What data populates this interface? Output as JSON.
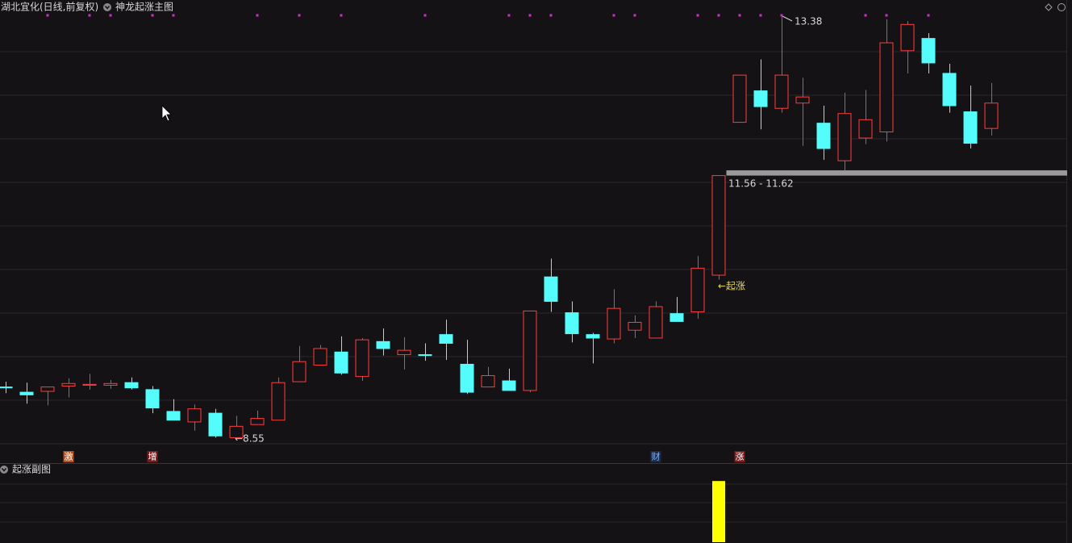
{
  "chart_data": [
    {
      "type": "candlestick",
      "title": "湖北宜化(日线,前复权)",
      "subtitle": "神龙起涨主图",
      "categories": [
        null,
        null,
        null,
        null,
        null,
        null,
        null,
        null,
        null,
        null,
        null,
        null,
        null,
        null,
        null,
        null,
        null,
        null,
        null,
        null,
        null,
        null,
        null,
        null,
        null,
        null,
        null,
        null,
        null,
        null,
        null,
        null,
        null,
        null,
        null,
        null,
        null,
        null,
        null,
        null,
        null,
        null,
        null,
        null,
        null,
        null,
        null,
        null
      ],
      "open": [
        9.14,
        9.08,
        9.09,
        9.15,
        9.16,
        9.16,
        9.19,
        9.11,
        8.86,
        8.74,
        8.84,
        8.56,
        8.71,
        8.76,
        9.2,
        9.39,
        9.54,
        9.26,
        9.66,
        9.51,
        9.51,
        9.74,
        9.4,
        9.14,
        9.21,
        9.1,
        10.4,
        9.99,
        9.74,
        9.69,
        9.79,
        9.7,
        9.98,
        10.0,
        10.42,
        12.17,
        12.53,
        12.33,
        12.39,
        12.16,
        11.73,
        11.99,
        12.06,
        12.99,
        13.13,
        12.73,
        12.29,
        12.1
      ],
      "high": [
        9.2,
        9.19,
        9.14,
        9.24,
        9.29,
        9.22,
        9.25,
        9.15,
        9.0,
        8.94,
        8.89,
        8.81,
        8.87,
        9.25,
        9.61,
        9.62,
        9.72,
        9.7,
        9.81,
        9.71,
        9.64,
        9.91,
        9.68,
        9.37,
        9.35,
        10.01,
        10.61,
        10.12,
        9.76,
        10.26,
        9.96,
        10.12,
        10.17,
        10.64,
        11.56,
        12.71,
        12.89,
        13.38,
        12.68,
        12.36,
        12.51,
        12.54,
        13.35,
        13.33,
        13.19,
        12.84,
        12.59,
        12.62
      ],
      "low": [
        9.07,
        8.95,
        8.93,
        9.02,
        9.11,
        9.12,
        9.11,
        8.84,
        8.76,
        8.64,
        8.56,
        8.55,
        8.71,
        8.76,
        9.2,
        9.39,
        9.28,
        9.21,
        9.5,
        9.34,
        9.44,
        9.45,
        9.06,
        9.14,
        9.1,
        9.08,
        10.0,
        9.65,
        9.41,
        9.64,
        9.7,
        9.7,
        9.89,
        9.92,
        10.37,
        12.17,
        12.09,
        12.28,
        11.9,
        11.74,
        11.62,
        11.92,
        11.95,
        12.73,
        12.73,
        12.28,
        11.87,
        12.02
      ],
      "close": [
        9.13,
        9.05,
        9.14,
        9.18,
        9.17,
        9.18,
        9.13,
        8.9,
        8.76,
        8.89,
        8.58,
        8.69,
        8.78,
        9.19,
        9.43,
        9.58,
        9.3,
        9.68,
        9.58,
        9.56,
        9.5,
        9.64,
        9.08,
        9.27,
        9.1,
        10.01,
        10.12,
        9.75,
        9.7,
        10.04,
        9.88,
        10.06,
        9.89,
        10.5,
        11.56,
        12.71,
        12.35,
        12.71,
        12.46,
        11.87,
        12.27,
        12.2,
        13.08,
        13.29,
        12.85,
        12.36,
        11.93,
        12.39
      ],
      "ylim": [
        8.49,
        13.57
      ],
      "up_color": "#ff3c3c",
      "down_color": "#54fcfc",
      "signal_color": "#d42ad4",
      "signals": [
        0,
        0,
        1,
        0,
        1,
        1,
        0,
        1,
        1,
        0,
        0,
        0,
        1,
        0,
        1,
        0,
        1,
        0,
        0,
        0,
        1,
        0,
        0,
        0,
        1,
        1,
        1,
        0,
        0,
        1,
        1,
        0,
        0,
        1,
        1,
        1,
        1,
        1,
        0,
        0,
        0,
        1,
        1,
        0,
        1,
        0,
        0,
        0
      ],
      "bottom_tags": [
        null,
        null,
        null,
        "激",
        null,
        null,
        null,
        "增",
        null,
        null,
        null,
        null,
        null,
        null,
        null,
        null,
        null,
        null,
        null,
        null,
        null,
        null,
        null,
        null,
        null,
        null,
        null,
        null,
        null,
        null,
        null,
        "财",
        null,
        null,
        null,
        "涨",
        null,
        null,
        null,
        null,
        null,
        null,
        null,
        null,
        null,
        null,
        null,
        null
      ],
      "high_label": "13.38",
      "low_label": "←8.55",
      "start_label": "←起涨",
      "gap": {
        "values": [
          11.56,
          11.62
        ],
        "label": "11.56 - 11.62",
        "color": "#9a9a9a"
      }
    },
    {
      "type": "bar",
      "title": "起涨副图",
      "values": [
        null,
        null,
        null,
        null,
        null,
        null,
        null,
        null,
        null,
        null,
        null,
        null,
        null,
        null,
        null,
        null,
        null,
        null,
        null,
        null,
        null,
        null,
        null,
        null,
        null,
        null,
        null,
        null,
        null,
        null,
        null,
        null,
        null,
        null,
        1,
        null,
        null,
        null,
        null,
        null,
        null,
        null,
        null,
        null,
        null,
        null,
        null,
        null
      ],
      "ylim": [
        0,
        1.25
      ],
      "color": "#ffff00"
    }
  ]
}
